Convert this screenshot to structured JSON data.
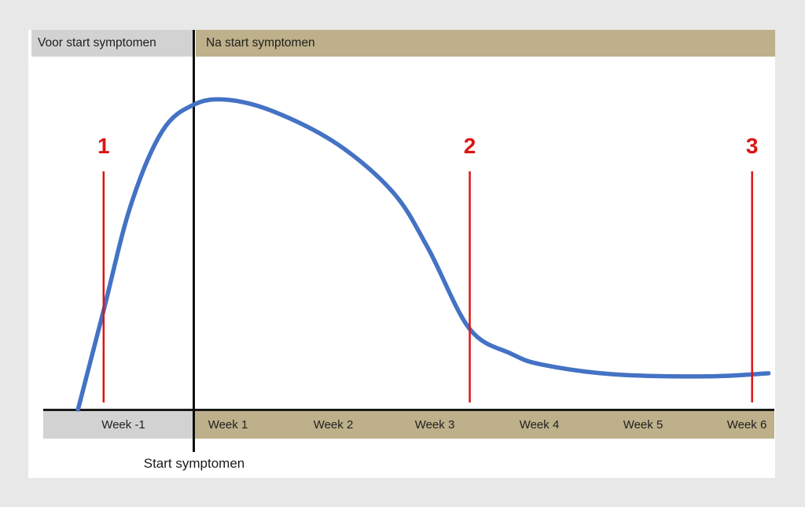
{
  "chart_data": {
    "type": "line",
    "title": "",
    "x_axis": {
      "tick_labels": [
        "Week -1",
        "Week 1",
        "Week 2",
        "Week 3",
        "Week 4",
        "Week 5",
        "Week 6"
      ],
      "range_weeks": [
        -1,
        6
      ],
      "unit": "weeks relative to symptom onset"
    },
    "y_axis": {
      "label": "",
      "scale_visible": false,
      "range": [
        0,
        100
      ]
    },
    "regions": [
      {
        "label": "Voor start symptomen",
        "from_week": -1,
        "to_week": 0,
        "band_color": "#d2d2d2"
      },
      {
        "label": "Na start symptomen",
        "from_week": 0,
        "to_week": 6,
        "band_color": "#bdb08a"
      }
    ],
    "onset": {
      "label": "Start symptomen",
      "week": 0
    },
    "series": [
      {
        "name": "besmettelijkheid-curve",
        "color": "#4472c4",
        "points": [
          {
            "week": -0.77,
            "value": 0
          },
          {
            "week": -0.6,
            "value": 32
          },
          {
            "week": -0.42,
            "value": 66
          },
          {
            "week": -0.21,
            "value": 90
          },
          {
            "week": 0.0,
            "value": 98.5
          },
          {
            "week": 0.35,
            "value": 100
          },
          {
            "week": 0.84,
            "value": 96
          },
          {
            "week": 1.49,
            "value": 85.5
          },
          {
            "week": 2.06,
            "value": 70
          },
          {
            "week": 2.42,
            "value": 52
          },
          {
            "week": 2.85,
            "value": 26
          },
          {
            "week": 3.28,
            "value": 18
          },
          {
            "week": 3.6,
            "value": 14.5
          },
          {
            "week": 4.33,
            "value": 11.4
          },
          {
            "week": 5.31,
            "value": 10.7
          },
          {
            "week": 5.94,
            "value": 11.7
          }
        ]
      }
    ],
    "markers": [
      {
        "label": "1",
        "week": -0.6
      },
      {
        "label": "2",
        "week": 2.85
      },
      {
        "label": "3",
        "week": 5.77
      }
    ],
    "marker_color": "#dd1414",
    "marker_value_span": [
      2.3,
      77
    ],
    "legend": {
      "visible": false
    },
    "grid": false
  },
  "colors": {
    "page_background": "#e8e8e8",
    "card_background": "#ffffff",
    "axis_line": "#1a1a1a",
    "text": "#1f1f1f"
  }
}
